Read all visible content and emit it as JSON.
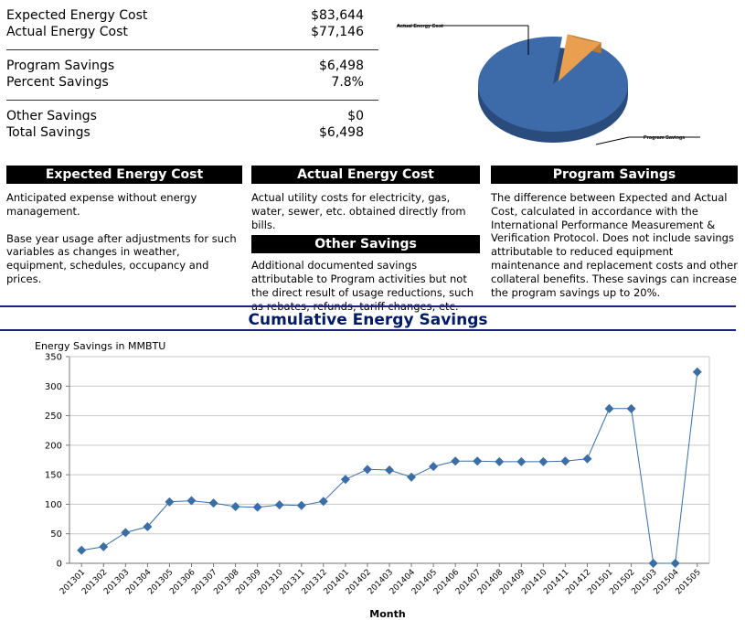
{
  "summary": {
    "expected_label": "Expected Energy Cost",
    "expected_value": "$83,644",
    "actual_label": "Actual Energy Cost",
    "actual_value": "$77,146",
    "program_label": "Program Savings",
    "program_value": "$6,498",
    "percent_label": "Percent Savings",
    "percent_value": "7.8%",
    "other_label": "Other Savings",
    "other_value": "$0",
    "total_label": "Total Savings",
    "total_value": "$6,498"
  },
  "pie": {
    "actual_label": "Actual Energy Cost",
    "program_label": "Program Savings",
    "actual_value": 77146,
    "program_value": 6498,
    "actual_color": "#3d6aa8",
    "program_color": "#e8a050"
  },
  "definitions": {
    "expected": {
      "title": "Expected Energy Cost",
      "p1": "Anticipated expense without energy management.",
      "p2": "Base year usage after adjustments for such variables as changes in weather, equipment, schedules, occupancy and prices."
    },
    "actual": {
      "title": "Actual Energy Cost",
      "p1": "Actual utility costs for electricity, gas, water, sewer, etc. obtained directly from bills."
    },
    "other": {
      "title": "Other Savings",
      "p1": "Additional documented savings attributable to Program activities but not the direct result of usage reductions, such as rebates, refunds, tariff changes, etc."
    },
    "program": {
      "title": "Program Savings",
      "p1": "The difference between Expected and Actual Cost, calculated in accordance with the International Performance Measurement & Verification Protocol. Does not include savings attributable to reduced equipment maintenance and replacement costs and other collateral benefits. These savings can increase the program savings up to 20%."
    }
  },
  "chart_data": {
    "type": "line",
    "title": "Cumulative Energy Savings",
    "ylabel": "Energy Savings in MMBTU",
    "xlabel": "Month",
    "ylim": [
      0,
      350
    ],
    "yticks": [
      0,
      50,
      100,
      150,
      200,
      250,
      300,
      350
    ],
    "grid": true,
    "color": "#3a6ea5",
    "categories": [
      "201301",
      "201302",
      "201303",
      "201304",
      "201305",
      "201306",
      "201307",
      "201308",
      "201309",
      "201310",
      "201311",
      "201312",
      "201401",
      "201402",
      "201403",
      "201404",
      "201405",
      "201406",
      "201407",
      "201408",
      "201409",
      "201410",
      "201411",
      "201412",
      "201501",
      "201502",
      "201503",
      "201504",
      "201505"
    ],
    "values": [
      22,
      28,
      52,
      62,
      104,
      106,
      102,
      96,
      95,
      99,
      98,
      105,
      142,
      159,
      158,
      146,
      164,
      173,
      173,
      172,
      172,
      172,
      173,
      177,
      262,
      262,
      0,
      0,
      324
    ]
  }
}
